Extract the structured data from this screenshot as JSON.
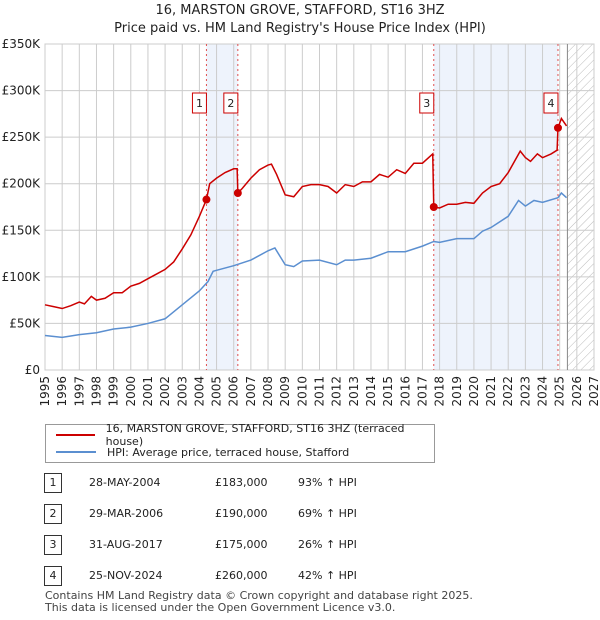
{
  "title": "16, MARSTON GROVE, STAFFORD, ST16 3HZ",
  "subtitle": "Price paid vs. HM Land Registry's House Price Index (HPI)",
  "legend": {
    "red": "16, MARSTON GROVE, STAFFORD, ST16 3HZ (terraced house)",
    "blue": "HPI: Average price, terraced house, Stafford"
  },
  "transactions": [
    {
      "n": "1",
      "date": "28-MAY-2004",
      "price": "£183,000",
      "hpi": "93% ↑ HPI"
    },
    {
      "n": "2",
      "date": "29-MAR-2006",
      "price": "£190,000",
      "hpi": "69% ↑ HPI"
    },
    {
      "n": "3",
      "date": "31-AUG-2017",
      "price": "£175,000",
      "hpi": "26% ↑ HPI"
    },
    {
      "n": "4",
      "date": "25-NOV-2024",
      "price": "£260,000",
      "hpi": "42% ↑ HPI"
    }
  ],
  "footer": [
    "Contains HM Land Registry data © Crown copyright and database right 2025.",
    "This data is licensed under the Open Government Licence v3.0."
  ],
  "chart_data": {
    "type": "line",
    "xlim": [
      1995,
      2027
    ],
    "ylim": [
      0,
      350000
    ],
    "yticks": [
      {
        "v": 0,
        "label": "£0"
      },
      {
        "v": 50000,
        "label": "£50K"
      },
      {
        "v": 100000,
        "label": "£100K"
      },
      {
        "v": 150000,
        "label": "£150K"
      },
      {
        "v": 200000,
        "label": "£200K"
      },
      {
        "v": 250000,
        "label": "£250K"
      },
      {
        "v": 300000,
        "label": "£300K"
      },
      {
        "v": 350000,
        "label": "£350K"
      }
    ],
    "xticks": [
      "1995",
      "1996",
      "1997",
      "1998",
      "1999",
      "2000",
      "2001",
      "2002",
      "2003",
      "2004",
      "2005",
      "2006",
      "2007",
      "2008",
      "2009",
      "2010",
      "2011",
      "2012",
      "2013",
      "2014",
      "2015",
      "2016",
      "2017",
      "2018",
      "2019",
      "2020",
      "2021",
      "2022",
      "2023",
      "2024",
      "2025",
      "2026",
      "2027"
    ],
    "colors": {
      "red": "#cc0000",
      "blue": "#5b8fd0"
    },
    "shaded": [
      [
        2004.41,
        2006.24
      ],
      [
        2017.66,
        2024.9
      ]
    ],
    "forecast_from": 2025.45,
    "sales": [
      {
        "label": "1",
        "x": 2004.41,
        "y": 183000
      },
      {
        "label": "2",
        "x": 2006.24,
        "y": 190000
      },
      {
        "label": "3",
        "x": 2017.66,
        "y": 175000
      },
      {
        "label": "4",
        "x": 2024.9,
        "y": 260000
      }
    ],
    "series": [
      {
        "name": "16, MARSTON GROVE, STAFFORD, ST16 3HZ (terraced house)",
        "color": "#cc0000",
        "points": [
          [
            1995,
            70000
          ],
          [
            1995.5,
            68000
          ],
          [
            1996,
            66000
          ],
          [
            1996.5,
            69000
          ],
          [
            1997,
            73000
          ],
          [
            1997.3,
            71000
          ],
          [
            1997.7,
            79000
          ],
          [
            1998,
            75000
          ],
          [
            1998.5,
            77000
          ],
          [
            1999,
            83000
          ],
          [
            1999.5,
            83000
          ],
          [
            2000,
            90000
          ],
          [
            2000.5,
            93000
          ],
          [
            2001,
            98000
          ],
          [
            2001.5,
            103000
          ],
          [
            2002,
            108000
          ],
          [
            2002.5,
            116000
          ],
          [
            2003,
            130000
          ],
          [
            2003.5,
            145000
          ],
          [
            2004,
            165000
          ],
          [
            2004.41,
            183000
          ],
          [
            2004.6,
            200000
          ],
          [
            2005,
            206000
          ],
          [
            2005.5,
            212000
          ],
          [
            2006,
            216000
          ],
          [
            2006.2,
            216000
          ],
          [
            2006.24,
            190000
          ],
          [
            2006.5,
            195000
          ],
          [
            2007,
            206000
          ],
          [
            2007.5,
            215000
          ],
          [
            2008,
            220000
          ],
          [
            2008.2,
            221000
          ],
          [
            2008.5,
            210000
          ],
          [
            2009,
            188000
          ],
          [
            2009.5,
            186000
          ],
          [
            2010,
            197000
          ],
          [
            2010.5,
            199000
          ],
          [
            2011,
            199000
          ],
          [
            2011.5,
            197000
          ],
          [
            2012,
            190000
          ],
          [
            2012.5,
            199000
          ],
          [
            2013,
            197000
          ],
          [
            2013.5,
            202000
          ],
          [
            2014,
            202000
          ],
          [
            2014.5,
            210000
          ],
          [
            2015,
            207000
          ],
          [
            2015.5,
            215000
          ],
          [
            2016,
            211000
          ],
          [
            2016.5,
            222000
          ],
          [
            2017,
            222000
          ],
          [
            2017.6,
            232000
          ],
          [
            2017.66,
            175000
          ],
          [
            2018,
            174000
          ],
          [
            2018.5,
            178000
          ],
          [
            2019,
            178000
          ],
          [
            2019.5,
            180000
          ],
          [
            2020,
            179000
          ],
          [
            2020.5,
            190000
          ],
          [
            2021,
            197000
          ],
          [
            2021.5,
            200000
          ],
          [
            2022,
            212000
          ],
          [
            2022.7,
            235000
          ],
          [
            2023,
            228000
          ],
          [
            2023.3,
            224000
          ],
          [
            2023.7,
            232000
          ],
          [
            2024,
            228000
          ],
          [
            2024.5,
            232000
          ],
          [
            2024.85,
            236000
          ],
          [
            2024.9,
            260000
          ],
          [
            2025.1,
            270000
          ],
          [
            2025.4,
            262000
          ]
        ]
      },
      {
        "name": "HPI: Average price, terraced house, Stafford",
        "color": "#5b8fd0",
        "points": [
          [
            1995,
            37000
          ],
          [
            1996,
            35000
          ],
          [
            1997,
            38000
          ],
          [
            1998,
            40000
          ],
          [
            1999,
            44000
          ],
          [
            2000,
            46000
          ],
          [
            2001,
            50000
          ],
          [
            2002,
            55000
          ],
          [
            2003,
            70000
          ],
          [
            2004,
            85000
          ],
          [
            2004.5,
            95000
          ],
          [
            2004.8,
            106000
          ],
          [
            2005,
            107000
          ],
          [
            2006,
            112000
          ],
          [
            2007,
            118000
          ],
          [
            2008,
            128000
          ],
          [
            2008.4,
            131000
          ],
          [
            2009,
            113000
          ],
          [
            2009.5,
            111000
          ],
          [
            2010,
            117000
          ],
          [
            2011,
            118000
          ],
          [
            2012,
            113000
          ],
          [
            2012.5,
            118000
          ],
          [
            2013,
            118000
          ],
          [
            2014,
            120000
          ],
          [
            2015,
            127000
          ],
          [
            2016,
            127000
          ],
          [
            2017,
            133000
          ],
          [
            2017.66,
            138000
          ],
          [
            2018,
            137000
          ],
          [
            2019,
            141000
          ],
          [
            2020,
            141000
          ],
          [
            2020.5,
            149000
          ],
          [
            2021,
            153000
          ],
          [
            2022,
            165000
          ],
          [
            2022.6,
            182000
          ],
          [
            2023,
            176000
          ],
          [
            2023.5,
            182000
          ],
          [
            2024,
            180000
          ],
          [
            2024.9,
            185000
          ],
          [
            2025.1,
            190000
          ],
          [
            2025.4,
            185000
          ]
        ]
      }
    ]
  }
}
